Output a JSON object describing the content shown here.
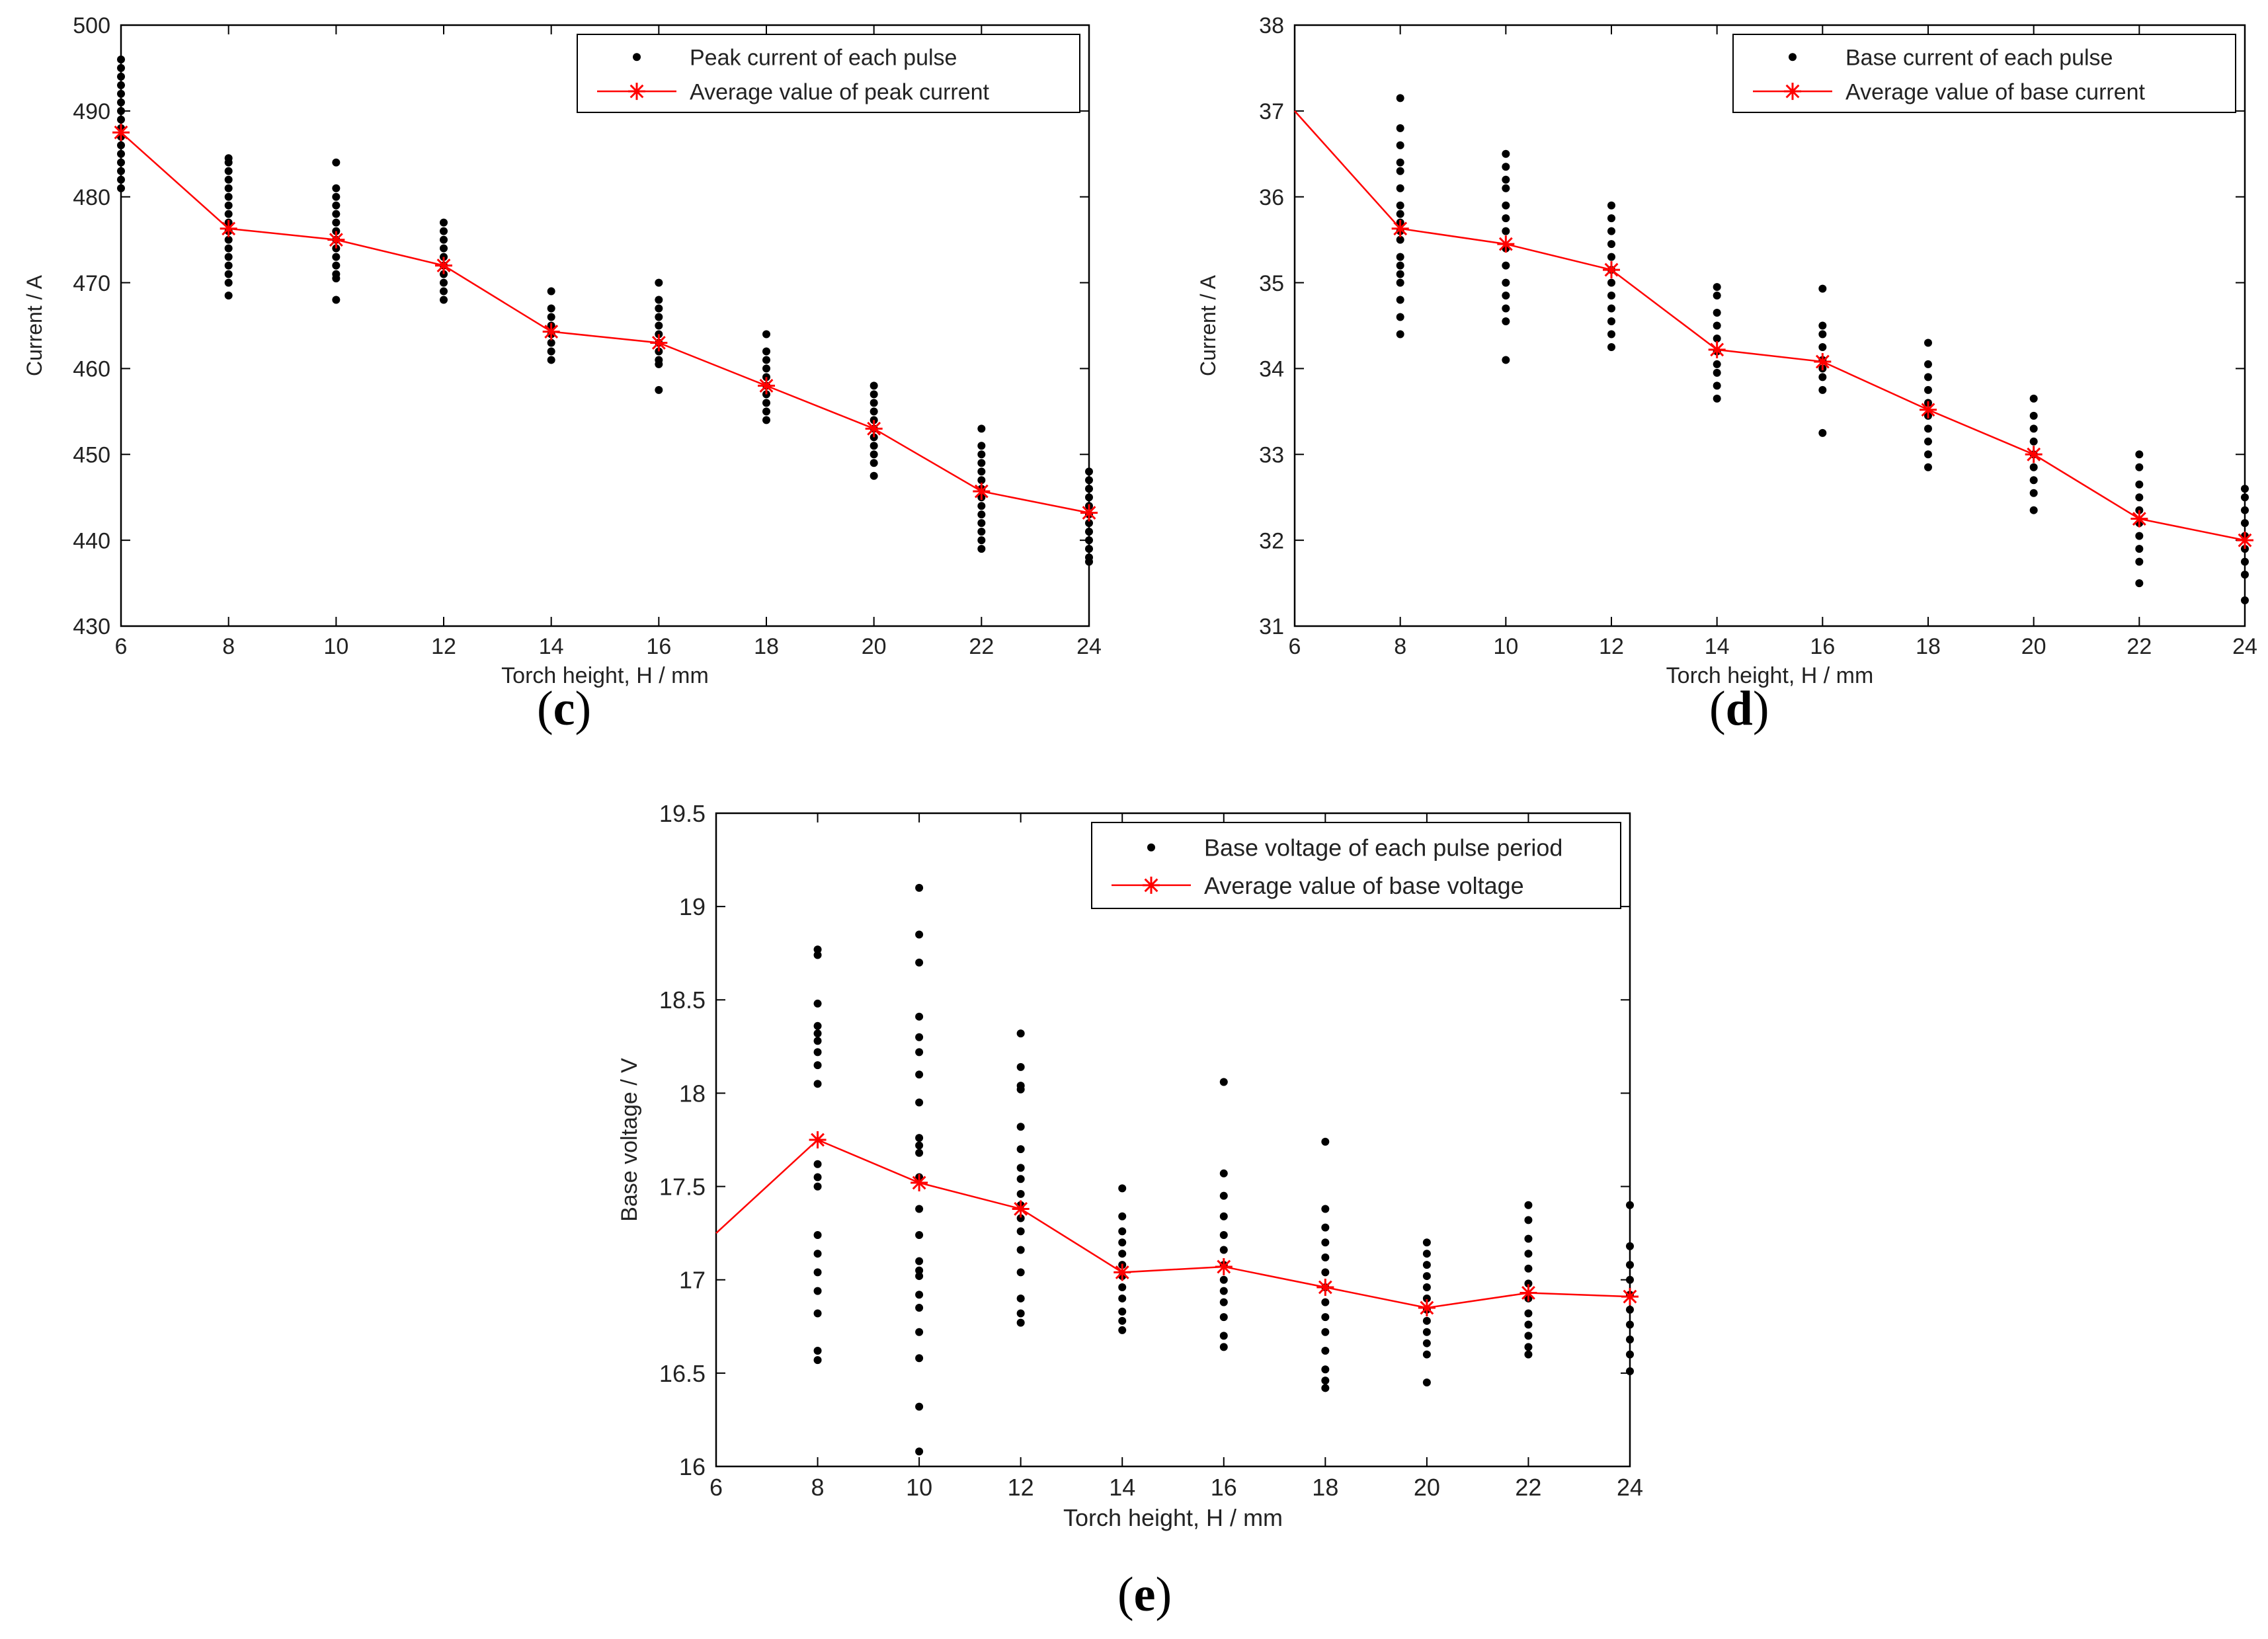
{
  "chart_data": [
    {
      "id": "c",
      "type": "scatter+line",
      "caption_letter": "c",
      "xlabel": "Torch height, H / mm",
      "ylabel": "Current / A",
      "xlim": [
        6,
        24
      ],
      "ylim": [
        430,
        500
      ],
      "xticks": [
        6,
        8,
        10,
        12,
        14,
        16,
        18,
        20,
        22,
        24
      ],
      "yticks": [
        430,
        440,
        450,
        460,
        470,
        480,
        490,
        500
      ],
      "legend_position": "top-right",
      "scatter": {
        "name": "Peak current of each pulse",
        "color": "#000000",
        "points": [
          {
            "x": 6,
            "y": [
              481,
              482,
              483,
              484,
              485,
              486,
              487,
              488,
              489,
              490,
              491,
              492,
              493,
              494,
              495,
              496
            ]
          },
          {
            "x": 8,
            "y": [
              468.5,
              470,
              471,
              472,
              473,
              474,
              475,
              476,
              477,
              478,
              479,
              480,
              481,
              482,
              483,
              484,
              484.5
            ]
          },
          {
            "x": 10,
            "y": [
              468,
              470.5,
              471,
              472,
              473,
              474,
              475,
              476,
              477,
              478,
              479,
              480,
              481,
              484
            ]
          },
          {
            "x": 12,
            "y": [
              468,
              469,
              470,
              471,
              472,
              473,
              474,
              475,
              476,
              477
            ]
          },
          {
            "x": 14,
            "y": [
              461,
              462,
              463,
              464,
              465,
              466,
              467,
              469
            ]
          },
          {
            "x": 16,
            "y": [
              457.5,
              460.5,
              461,
              462,
              463,
              464,
              465,
              466,
              467,
              468,
              470
            ]
          },
          {
            "x": 18,
            "y": [
              454,
              455,
              456,
              457,
              458,
              459,
              460,
              461,
              462,
              464
            ]
          },
          {
            "x": 20,
            "y": [
              447.5,
              449,
              450,
              451,
              452,
              453,
              454,
              455,
              456,
              457,
              458
            ]
          },
          {
            "x": 22,
            "y": [
              439,
              440,
              441,
              442,
              443,
              444,
              445,
              446,
              447,
              448,
              449,
              450,
              451,
              453
            ]
          },
          {
            "x": 24,
            "y": [
              437.5,
              438,
              439,
              440,
              441,
              442,
              443,
              444,
              445,
              446,
              447,
              448
            ]
          }
        ]
      },
      "line": {
        "name": "Average value of peak current",
        "color": "#ff0000",
        "x": [
          6,
          8,
          10,
          12,
          14,
          16,
          18,
          20,
          22,
          24
        ],
        "y": [
          487.5,
          476.3,
          475,
          472,
          464.3,
          463,
          458,
          453,
          445.7,
          443.2
        ]
      }
    },
    {
      "id": "d",
      "type": "scatter+line",
      "caption_letter": "d",
      "xlabel": "Torch height, H / mm",
      "ylabel": "Current / A",
      "xlim": [
        6,
        24
      ],
      "ylim": [
        31,
        38
      ],
      "xticks": [
        6,
        8,
        10,
        12,
        14,
        16,
        18,
        20,
        22,
        24
      ],
      "yticks": [
        31,
        32,
        33,
        34,
        35,
        36,
        37,
        38
      ],
      "legend_position": "top-right",
      "scatter": {
        "name": "Base current of each pulse",
        "color": "#000000",
        "points": [
          {
            "x": 8,
            "y": [
              34.4,
              34.6,
              34.8,
              35.0,
              35.1,
              35.2,
              35.3,
              35.5,
              35.6,
              35.7,
              35.8,
              35.9,
              36.1,
              36.3,
              36.4,
              36.6,
              36.8,
              37.15
            ]
          },
          {
            "x": 10,
            "y": [
              34.1,
              34.55,
              34.7,
              34.85,
              35.0,
              35.2,
              35.4,
              35.6,
              35.75,
              35.9,
              36.1,
              36.2,
              36.35,
              36.5
            ]
          },
          {
            "x": 12,
            "y": [
              34.25,
              34.4,
              34.55,
              34.7,
              34.85,
              35.0,
              35.15,
              35.3,
              35.45,
              35.6,
              35.75,
              35.9
            ]
          },
          {
            "x": 14,
            "y": [
              33.65,
              33.8,
              33.95,
              34.05,
              34.2,
              34.35,
              34.5,
              34.65,
              34.85,
              34.95
            ]
          },
          {
            "x": 16,
            "y": [
              33.25,
              33.75,
              33.9,
              34.0,
              34.1,
              34.25,
              34.4,
              34.5,
              34.93
            ]
          },
          {
            "x": 18,
            "y": [
              32.85,
              33.0,
              33.15,
              33.3,
              33.45,
              33.6,
              33.75,
              33.9,
              34.05,
              34.3
            ]
          },
          {
            "x": 20,
            "y": [
              32.35,
              32.55,
              32.7,
              32.85,
              33.0,
              33.15,
              33.3,
              33.45,
              33.65
            ]
          },
          {
            "x": 22,
            "y": [
              31.5,
              31.75,
              31.9,
              32.05,
              32.2,
              32.35,
              32.5,
              32.65,
              32.85,
              33.0
            ]
          },
          {
            "x": 24,
            "y": [
              31.3,
              31.6,
              31.75,
              31.9,
              32.05,
              32.2,
              32.35,
              32.5,
              32.6
            ]
          }
        ]
      },
      "line": {
        "name": "Average value of base current",
        "color": "#ff0000",
        "x": [
          6,
          8,
          10,
          12,
          14,
          16,
          18,
          20,
          22,
          24
        ],
        "y": [
          37.0,
          35.63,
          35.45,
          35.15,
          34.22,
          34.08,
          33.52,
          33.0,
          32.25,
          32.0
        ]
      }
    },
    {
      "id": "e",
      "type": "scatter+line",
      "caption_letter": "e",
      "xlabel": "Torch height, H / mm",
      "ylabel": "Base voltage / V",
      "xlim": [
        6,
        24
      ],
      "ylim": [
        16,
        19.5
      ],
      "xticks": [
        6,
        8,
        10,
        12,
        14,
        16,
        18,
        20,
        22,
        24
      ],
      "yticks": [
        16,
        16.5,
        17,
        17.5,
        18,
        18.5,
        19,
        19.5
      ],
      "legend_position": "top-right",
      "scatter": {
        "name": "Base voltage of each pulse period",
        "color": "#000000",
        "points": [
          {
            "x": 8,
            "y": [
              16.57,
              16.62,
              16.82,
              16.94,
              17.04,
              17.14,
              17.24,
              17.5,
              17.55,
              17.62,
              18.05,
              18.15,
              18.22,
              18.28,
              18.32,
              18.36,
              18.48,
              18.74,
              18.77
            ]
          },
          {
            "x": 10,
            "y": [
              16.08,
              16.32,
              16.58,
              16.72,
              16.85,
              16.92,
              17.02,
              17.05,
              17.1,
              17.24,
              17.38,
              17.55,
              17.68,
              17.72,
              17.76,
              17.95,
              18.1,
              18.22,
              18.3,
              18.41,
              18.7,
              18.85,
              19.1
            ]
          },
          {
            "x": 12,
            "y": [
              16.77,
              16.82,
              16.9,
              17.04,
              17.16,
              17.26,
              17.33,
              17.4,
              17.46,
              17.54,
              17.6,
              17.7,
              17.82,
              18.02,
              18.04,
              18.14,
              18.32
            ]
          },
          {
            "x": 14,
            "y": [
              16.73,
              16.78,
              16.83,
              16.9,
              16.96,
              17.02,
              17.08,
              17.14,
              17.2,
              17.26,
              17.34,
              17.49
            ]
          },
          {
            "x": 16,
            "y": [
              16.64,
              16.7,
              16.8,
              16.88,
              16.94,
              17.0,
              17.08,
              17.16,
              17.24,
              17.34,
              17.45,
              17.57,
              18.06
            ]
          },
          {
            "x": 18,
            "y": [
              16.42,
              16.46,
              16.52,
              16.62,
              16.72,
              16.8,
              16.88,
              16.96,
              17.04,
              17.12,
              17.2,
              17.28,
              17.38,
              17.74
            ]
          },
          {
            "x": 20,
            "y": [
              16.45,
              16.6,
              16.66,
              16.72,
              16.78,
              16.84,
              16.9,
              16.96,
              17.02,
              17.08,
              17.14,
              17.2
            ]
          },
          {
            "x": 22,
            "y": [
              16.6,
              16.64,
              16.7,
              16.76,
              16.82,
              16.9,
              16.98,
              17.06,
              17.14,
              17.22,
              17.32,
              17.4
            ]
          },
          {
            "x": 24,
            "y": [
              16.51,
              16.6,
              16.68,
              16.76,
              16.84,
              16.92,
              17.0,
              17.08,
              17.18,
              17.4
            ]
          }
        ]
      },
      "line": {
        "name": "Average value of base voltage",
        "color": "#ff0000",
        "x": [
          6,
          8,
          10,
          12,
          14,
          16,
          18,
          20,
          22,
          24
        ],
        "y": [
          17.25,
          17.75,
          17.52,
          17.38,
          17.04,
          17.07,
          16.96,
          16.85,
          16.93,
          16.91
        ]
      }
    }
  ]
}
